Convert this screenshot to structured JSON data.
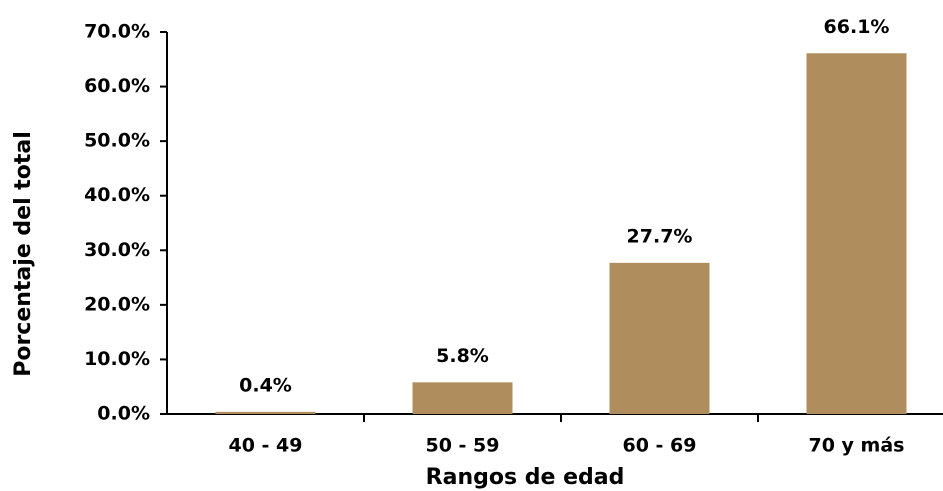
{
  "chart_data": {
    "type": "bar",
    "x_label": "Rangos de edad",
    "y_label": "Porcentaje del total",
    "categories": [
      "40 - 49",
      "50 - 59",
      "60 - 69",
      "70 y más"
    ],
    "values": [
      0.4,
      5.8,
      27.7,
      66.1
    ],
    "value_labels": [
      "0.4%",
      "5.8%",
      "27.7%",
      "66.1%"
    ],
    "color": "#b08d5c",
    "ylim": [
      0,
      70
    ],
    "yticks": [
      {
        "value": 0,
        "label": "0.0%"
      },
      {
        "value": 10,
        "label": "10.0%"
      },
      {
        "value": 20,
        "label": "20.0%"
      },
      {
        "value": 30,
        "label": "30.0%"
      },
      {
        "value": 40,
        "label": "40.0%"
      },
      {
        "value": 50,
        "label": "50.0%"
      },
      {
        "value": 60,
        "label": "60.0%"
      },
      {
        "value": 70,
        "label": "70.0%"
      }
    ],
    "grid": false
  }
}
